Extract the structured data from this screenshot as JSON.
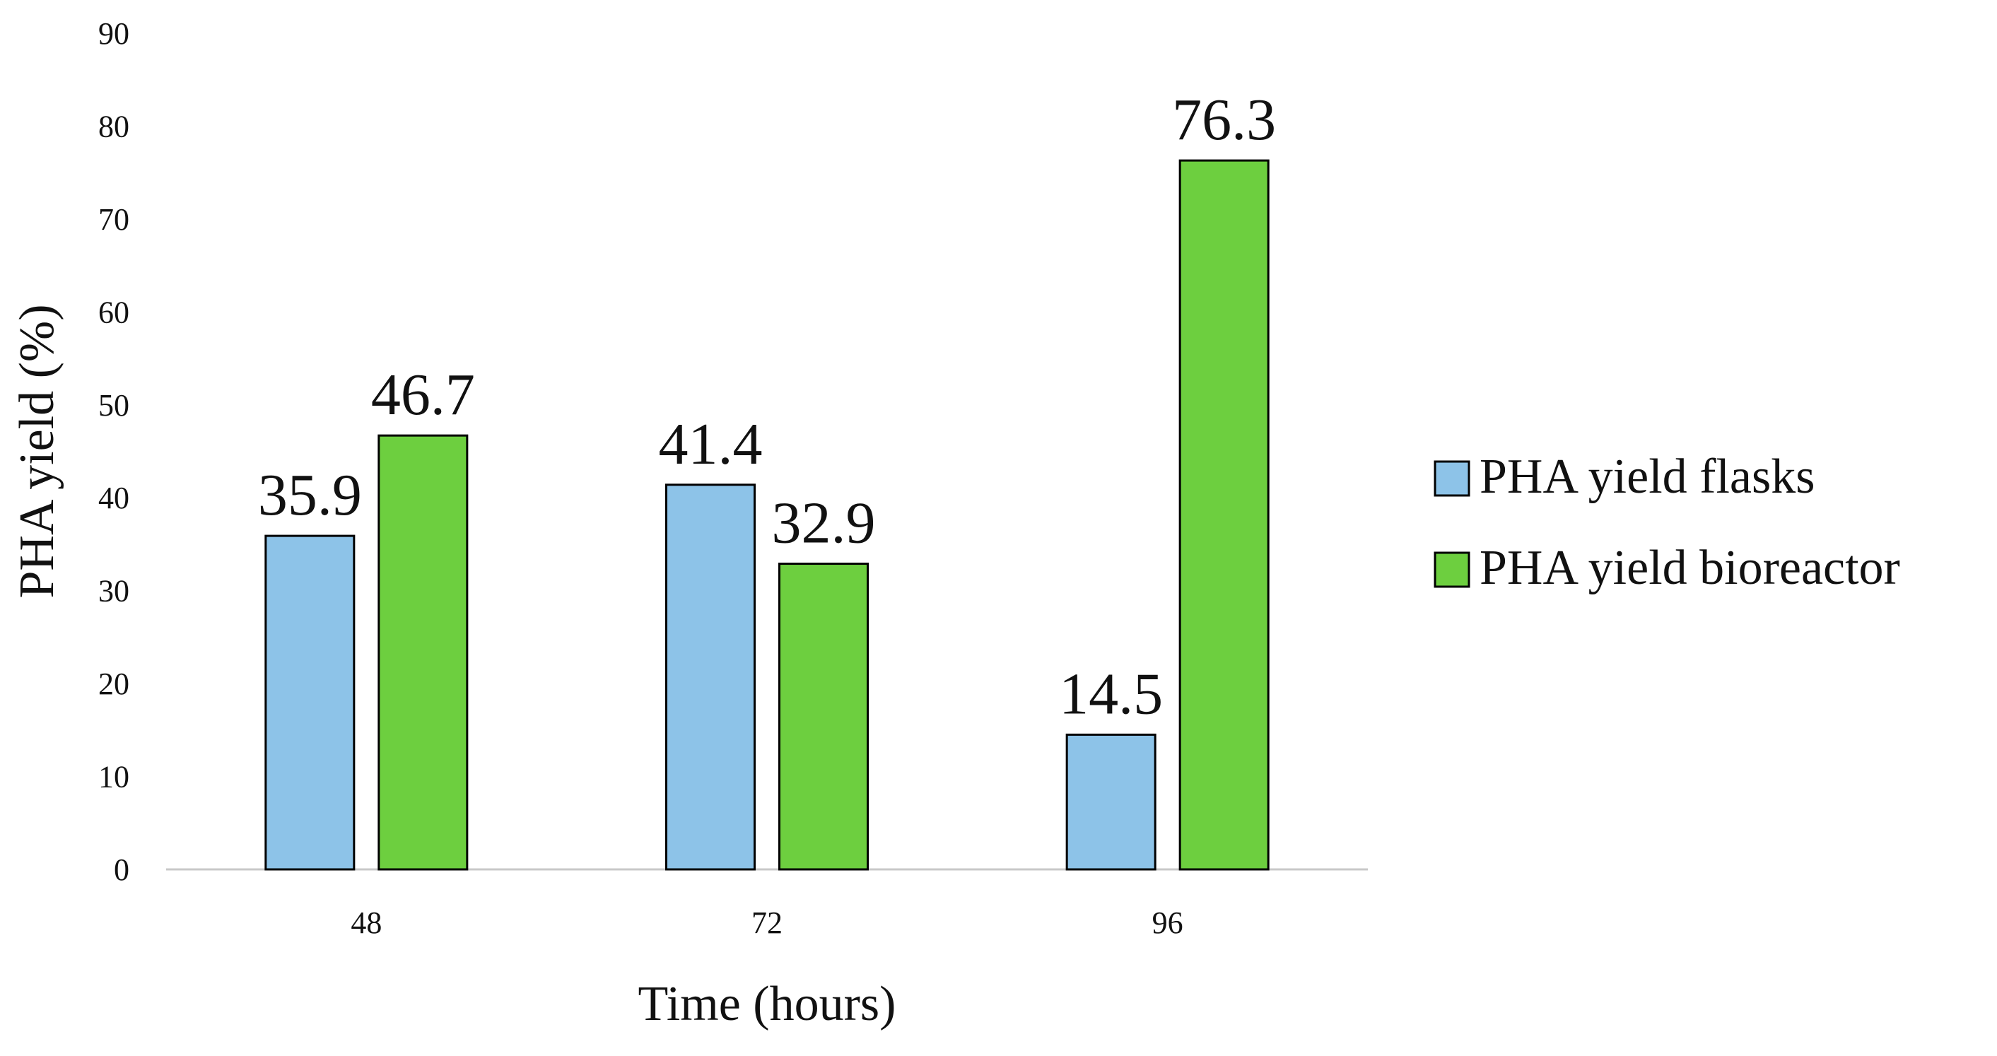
{
  "chart_data": {
    "type": "bar",
    "title": "",
    "xlabel": "Time (hours)",
    "ylabel": "PHA yield (%)",
    "categories": [
      "48",
      "72",
      "96"
    ],
    "ylim": [
      0,
      90
    ],
    "yticks": [
      0,
      10,
      20,
      30,
      40,
      50,
      60,
      70,
      80,
      90
    ],
    "grid": false,
    "legend_position": "right",
    "series": [
      {
        "name": "PHA yield flasks",
        "color": "#8dc3e8",
        "values": [
          35.9,
          41.4,
          14.5
        ],
        "labels": [
          "35.9",
          "41.4",
          "14.5"
        ]
      },
      {
        "name": "PHA yield bioreactor",
        "color": "#6dcf3f",
        "values": [
          46.7,
          32.9,
          76.3
        ],
        "labels": [
          "46.7",
          "32.9",
          "76.3"
        ]
      }
    ]
  }
}
